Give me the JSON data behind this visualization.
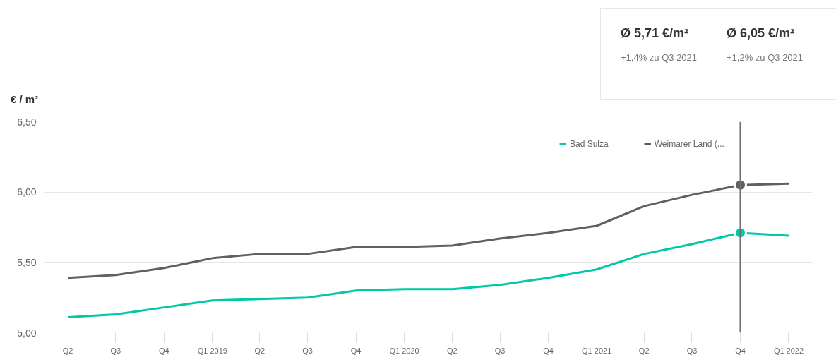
{
  "chart_data": {
    "type": "line",
    "ylabel": "€ / m²",
    "x": [
      "2018-04",
      "2018-07",
      "2018-10",
      "2019-01",
      "2019-04",
      "2019-07",
      "2019-10",
      "2020-01",
      "2020-04",
      "2020-07",
      "2020-10",
      "2021-01",
      "2021-04",
      "2021-07",
      "2021-10",
      "2022-01"
    ],
    "series": [
      {
        "name": "Bad Sulza",
        "color": "#00c9a7",
        "values": [
          5.11,
          5.13,
          5.18,
          5.23,
          5.24,
          5.25,
          5.3,
          5.31,
          5.31,
          5.34,
          5.39,
          5.45,
          5.56,
          5.63,
          5.71,
          5.69
        ]
      },
      {
        "name": "Weimarer Land (...",
        "color": "#606060",
        "values": [
          5.39,
          5.41,
          5.46,
          5.53,
          5.56,
          5.56,
          5.61,
          5.61,
          5.62,
          5.67,
          5.71,
          5.76,
          5.9,
          5.98,
          6.05,
          6.06
        ]
      },
      {
        "type": "scatter",
        "marker": "circle",
        "color": "#00c9a7",
        "x": [
          "2021-10"
        ],
        "values": [
          5.71
        ]
      },
      {
        "type": "scatter",
        "marker": "circle",
        "color": "#606060",
        "x": [
          "2021-10"
        ],
        "values": [
          6.05
        ]
      }
    ],
    "xlim": [
      "2018-02-15",
      "2022-02-15"
    ],
    "xticks": [
      {
        "value": "2018-04",
        "label": "Q2"
      },
      {
        "value": "2018-07",
        "label": "Q3"
      },
      {
        "value": "2018-10",
        "label": "Q4"
      },
      {
        "value": "2019-01",
        "label": "Q1 2019"
      },
      {
        "value": "2019-04",
        "label": "Q2"
      },
      {
        "value": "2019-07",
        "label": "Q3"
      },
      {
        "value": "2019-10",
        "label": "Q4"
      },
      {
        "value": "2020-01",
        "label": "Q1 2020"
      },
      {
        "value": "2020-04",
        "label": "Q2"
      },
      {
        "value": "2020-07",
        "label": "Q3"
      },
      {
        "value": "2020-10",
        "label": "Q4"
      },
      {
        "value": "2021-01",
        "label": "Q1 2021"
      },
      {
        "value": "2021-04",
        "label": "Q2"
      },
      {
        "value": "2021-07",
        "label": "Q3"
      },
      {
        "value": "2021-10",
        "label": "Q4"
      },
      {
        "value": "2022-01",
        "label": "Q1 2022"
      }
    ],
    "ylim": [
      5.0,
      6.5
    ],
    "yticks": [
      {
        "value": 5.0,
        "label": "5,00"
      },
      {
        "value": 5.5,
        "label": "5,50"
      },
      {
        "value": 6.0,
        "label": "6,00"
      },
      {
        "value": 6.5,
        "label": "6,50"
      }
    ],
    "ref_lines": [
      {
        "axis": "x",
        "value": "2021-10",
        "color": "#707070"
      }
    ],
    "annotations": [
      "Ø 5,71 €/m²",
      "+1,4% zu Q3 2021",
      "Ø 6,05 €/m²",
      "+1,2% zu Q3 2021"
    ],
    "grid": true,
    "legend": "top right",
    "marker": "none",
    "line_style": "solid"
  }
}
